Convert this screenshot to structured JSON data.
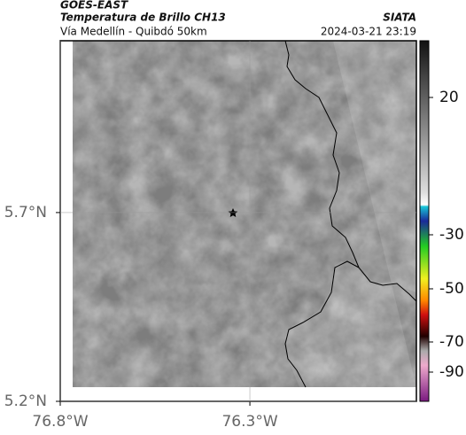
{
  "header": {
    "satellite": "GOES-EAST",
    "product": "Temperatura de Brillo CH13",
    "source": "SIATA",
    "area": "Vía Medellín - Quibdó 50km",
    "datetime": "2024-03-21 23:19"
  },
  "map": {
    "xlim": [
      -76.8,
      -75.861
    ],
    "ylim": [
      5.2,
      6.155
    ],
    "xticks": [
      {
        "value": -76.8,
        "label": "76.8°W"
      },
      {
        "value": -76.3,
        "label": "76.3°W"
      }
    ],
    "yticks": [
      {
        "value": 5.2,
        "label": "5.2°N"
      },
      {
        "value": 5.7,
        "label": "5.7°N"
      }
    ],
    "grid": true
  },
  "colorbar": {
    "ticks": [
      20,
      -30,
      -50,
      -70,
      -90
    ]
  }
}
